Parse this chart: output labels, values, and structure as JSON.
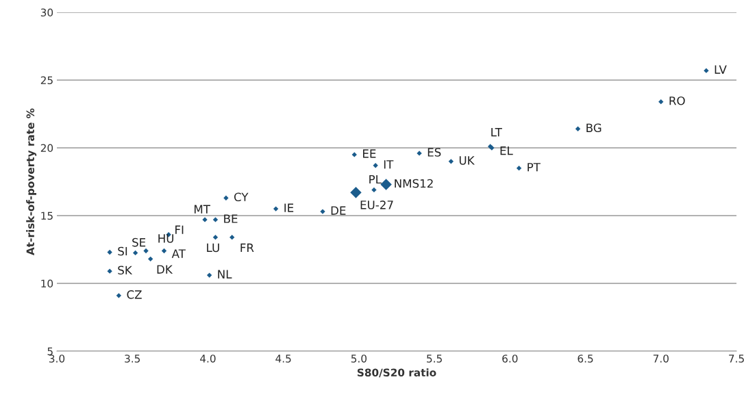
{
  "chart_data": {
    "type": "scatter",
    "xlabel": "S80/S20 ratio",
    "ylabel": "At-risk-of-poverty rate %",
    "xlim": [
      3.0,
      7.5
    ],
    "xticks": [
      {
        "value": 3.0,
        "label": "3.0"
      },
      {
        "value": 3.5,
        "label": "3.5"
      },
      {
        "value": 4.0,
        "label": "4.0"
      },
      {
        "value": 4.5,
        "label": "4.5"
      },
      {
        "value": 5.0,
        "label": "5.0"
      },
      {
        "value": 5.5,
        "label": "5.5"
      },
      {
        "value": 6.0,
        "label": "6.0"
      },
      {
        "value": 6.5,
        "label": "6.5"
      },
      {
        "value": 7.0,
        "label": "7.0"
      },
      {
        "value": 7.5,
        "label": "7.5"
      }
    ],
    "ylim": [
      5,
      30
    ],
    "yticks": [
      5,
      10,
      15,
      20,
      25,
      30
    ],
    "grid": "y",
    "marker": "diamond",
    "series": [
      {
        "color": "#1b5c8c",
        "x": [
          7.3,
          7.0,
          6.45,
          5.87,
          5.88,
          5.4,
          5.61,
          6.06,
          4.97,
          5.11,
          5.1,
          4.45,
          4.76,
          4.12,
          3.98,
          4.05,
          4.05,
          4.16,
          3.74,
          4.01,
          3.35,
          3.52,
          3.59,
          3.71,
          3.62,
          3.35,
          3.41
        ],
        "values": [
          25.7,
          23.4,
          21.4,
          20.1,
          20.0,
          19.6,
          19.0,
          18.5,
          19.5,
          18.7,
          16.9,
          15.5,
          15.3,
          16.3,
          14.7,
          14.7,
          13.4,
          13.4,
          13.6,
          10.6,
          12.3,
          12.25,
          12.4,
          12.4,
          11.8,
          10.9,
          9.1
        ]
      },
      {
        "color": "#1b5c8c",
        "x": [
          5.18,
          4.98
        ],
        "values": [
          17.3,
          16.7
        ]
      }
    ],
    "annotations": [
      {
        "text": "LV",
        "x": 7.3,
        "y": 25.7
      },
      {
        "text": "RO",
        "x": 7.0,
        "y": 23.4
      },
      {
        "text": "BG",
        "x": 6.45,
        "y": 21.4
      },
      {
        "text": "LT",
        "x": 5.87,
        "y": 20.1
      },
      {
        "text": "EL",
        "x": 5.88,
        "y": 20.0
      },
      {
        "text": "ES",
        "x": 5.4,
        "y": 19.6
      },
      {
        "text": "UK",
        "x": 5.61,
        "y": 19.0
      },
      {
        "text": "PT",
        "x": 6.06,
        "y": 18.5
      },
      {
        "text": "EE",
        "x": 4.97,
        "y": 19.5
      },
      {
        "text": "IT",
        "x": 5.11,
        "y": 18.7
      },
      {
        "text": "PL",
        "x": 5.1,
        "y": 16.9
      },
      {
        "text": "IE",
        "x": 4.45,
        "y": 15.5
      },
      {
        "text": "DE",
        "x": 4.76,
        "y": 15.3
      },
      {
        "text": "CY",
        "x": 4.12,
        "y": 16.3
      },
      {
        "text": "MT",
        "x": 3.98,
        "y": 14.7
      },
      {
        "text": "BE",
        "x": 4.05,
        "y": 14.7
      },
      {
        "text": "LU",
        "x": 4.05,
        "y": 13.4
      },
      {
        "text": "FR",
        "x": 4.16,
        "y": 13.4
      },
      {
        "text": "FI",
        "x": 3.74,
        "y": 13.6
      },
      {
        "text": "NL",
        "x": 4.01,
        "y": 10.6
      },
      {
        "text": "SI",
        "x": 3.35,
        "y": 12.3
      },
      {
        "text": "SE",
        "x": 3.52,
        "y": 12.25
      },
      {
        "text": "HU",
        "x": 3.59,
        "y": 12.4
      },
      {
        "text": "AT",
        "x": 3.71,
        "y": 12.4
      },
      {
        "text": "DK",
        "x": 3.62,
        "y": 11.8
      },
      {
        "text": "SK",
        "x": 3.35,
        "y": 10.9
      },
      {
        "text": "CZ",
        "x": 3.41,
        "y": 9.1
      },
      {
        "text": "NMS12",
        "x": 5.18,
        "y": 17.3
      },
      {
        "text": "EU-27",
        "x": 4.98,
        "y": 16.7
      }
    ]
  }
}
